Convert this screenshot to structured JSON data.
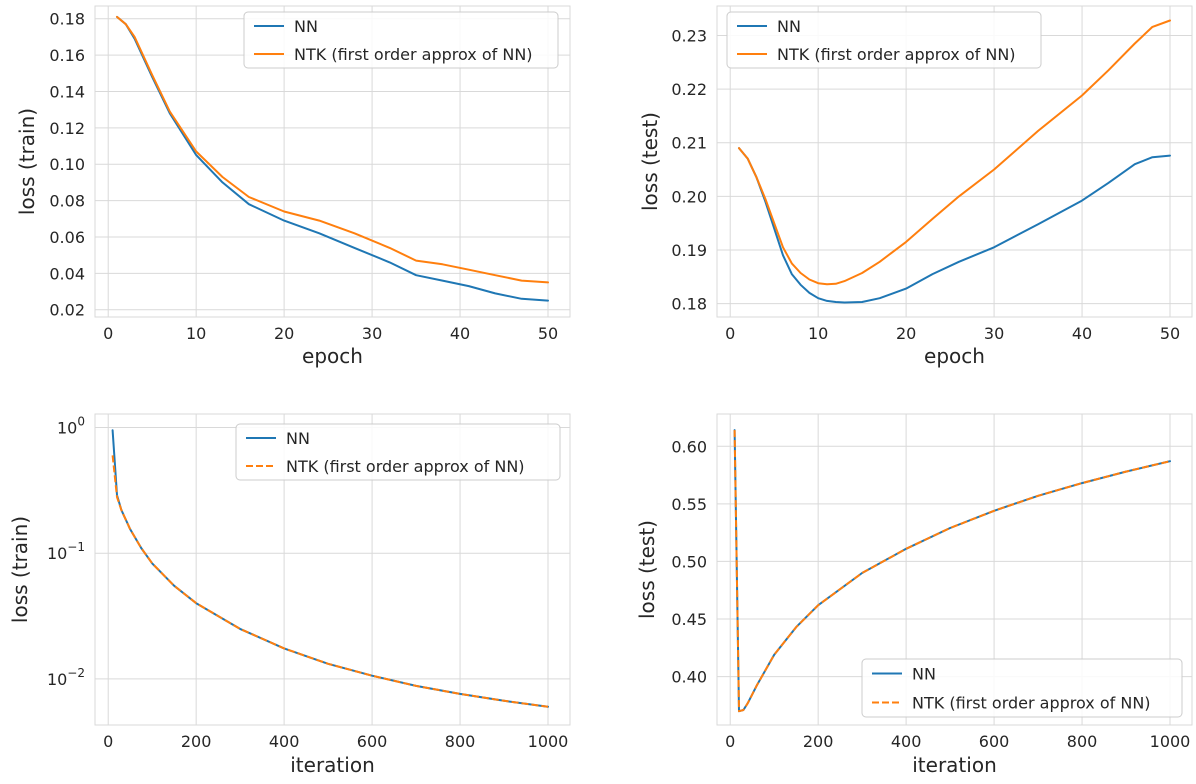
{
  "colors": {
    "nn": "#1f77b4",
    "ntk": "#ff7f0e",
    "grid": "#d9d9d9",
    "background": "#ffffff"
  },
  "chart_data": [
    {
      "type": "line",
      "xlabel": "epoch",
      "ylabel": "loss (train)",
      "xlim": [
        -1.5,
        52.5
      ],
      "ylim": [
        0.016,
        0.187
      ],
      "xticks": [
        {
          "v": 0,
          "label": "0"
        },
        {
          "v": 10,
          "label": "10"
        },
        {
          "v": 20,
          "label": "20"
        },
        {
          "v": 30,
          "label": "30"
        },
        {
          "v": 40,
          "label": "40"
        },
        {
          "v": 50,
          "label": "50"
        }
      ],
      "yticks": [
        {
          "v": 0.02,
          "label": "0.02"
        },
        {
          "v": 0.04,
          "label": "0.04"
        },
        {
          "v": 0.06,
          "label": "0.06"
        },
        {
          "v": 0.08,
          "label": "0.08"
        },
        {
          "v": 0.1,
          "label": "0.10"
        },
        {
          "v": 0.12,
          "label": "0.12"
        },
        {
          "v": 0.14,
          "label": "0.14"
        },
        {
          "v": 0.16,
          "label": "0.16"
        },
        {
          "v": 0.18,
          "label": "0.18"
        }
      ],
      "grid": true,
      "legend": "top-right",
      "series": [
        {
          "name": "NN",
          "color": "#1f77b4",
          "dash": false,
          "x": [
            1,
            2,
            3,
            5,
            7,
            10,
            13,
            16,
            20,
            24,
            28,
            32,
            35,
            38,
            41,
            44,
            47,
            50
          ],
          "y": [
            0.181,
            0.177,
            0.169,
            0.148,
            0.128,
            0.105,
            0.09,
            0.078,
            0.069,
            0.062,
            0.054,
            0.046,
            0.039,
            0.036,
            0.033,
            0.029,
            0.026,
            0.025
          ]
        },
        {
          "name": "NTK (first order approx of NN)",
          "color": "#ff7f0e",
          "dash": false,
          "x": [
            1,
            2,
            3,
            5,
            7,
            10,
            13,
            16,
            20,
            24,
            28,
            32,
            35,
            38,
            41,
            44,
            47,
            50
          ],
          "y": [
            0.181,
            0.177,
            0.17,
            0.149,
            0.129,
            0.107,
            0.093,
            0.082,
            0.074,
            0.069,
            0.062,
            0.054,
            0.047,
            0.045,
            0.042,
            0.039,
            0.036,
            0.035
          ]
        }
      ]
    },
    {
      "type": "line",
      "xlabel": "epoch",
      "ylabel": "loss (test)",
      "xlim": [
        -1.5,
        52.5
      ],
      "ylim": [
        0.1775,
        0.2355
      ],
      "xticks": [
        {
          "v": 0,
          "label": "0"
        },
        {
          "v": 10,
          "label": "10"
        },
        {
          "v": 20,
          "label": "20"
        },
        {
          "v": 30,
          "label": "30"
        },
        {
          "v": 40,
          "label": "40"
        },
        {
          "v": 50,
          "label": "50"
        }
      ],
      "yticks": [
        {
          "v": 0.18,
          "label": "0.18"
        },
        {
          "v": 0.19,
          "label": "0.19"
        },
        {
          "v": 0.2,
          "label": "0.20"
        },
        {
          "v": 0.21,
          "label": "0.21"
        },
        {
          "v": 0.22,
          "label": "0.22"
        },
        {
          "v": 0.23,
          "label": "0.23"
        }
      ],
      "grid": true,
      "legend": "top-left",
      "series": [
        {
          "name": "NN",
          "color": "#1f77b4",
          "dash": false,
          "x": [
            1,
            2,
            3,
            4,
            5,
            6,
            7,
            8,
            9,
            10,
            11,
            12,
            13,
            15,
            17,
            20,
            23,
            26,
            30,
            35,
            40,
            43,
            46,
            48,
            50
          ],
          "y": [
            0.209,
            0.207,
            0.2035,
            0.199,
            0.194,
            0.189,
            0.1855,
            0.1835,
            0.182,
            0.181,
            0.1805,
            0.1803,
            0.1802,
            0.1803,
            0.181,
            0.1828,
            0.1855,
            0.1878,
            0.1905,
            0.1948,
            0.1992,
            0.2025,
            0.206,
            0.2073,
            0.2076
          ]
        },
        {
          "name": "NTK (first order approx of NN)",
          "color": "#ff7f0e",
          "dash": false,
          "x": [
            1,
            2,
            3,
            4,
            5,
            6,
            7,
            8,
            9,
            10,
            11,
            12,
            13,
            15,
            17,
            20,
            23,
            26,
            30,
            35,
            40,
            43,
            46,
            48,
            50
          ],
          "y": [
            0.209,
            0.207,
            0.2035,
            0.1995,
            0.195,
            0.1905,
            0.1875,
            0.1857,
            0.1845,
            0.1838,
            0.1836,
            0.1837,
            0.1842,
            0.1857,
            0.1878,
            0.1915,
            0.1958,
            0.2,
            0.205,
            0.2122,
            0.2188,
            0.2235,
            0.2285,
            0.2316,
            0.2328
          ]
        }
      ]
    },
    {
      "type": "line",
      "xlabel": "iteration",
      "ylabel": "loss (train)",
      "ylog": true,
      "xlim": [
        -30,
        1050
      ],
      "ylim": [
        0.0043,
        1.28
      ],
      "xticks": [
        {
          "v": 0,
          "label": "0"
        },
        {
          "v": 200,
          "label": "200"
        },
        {
          "v": 400,
          "label": "400"
        },
        {
          "v": 600,
          "label": "600"
        },
        {
          "v": 800,
          "label": "800"
        },
        {
          "v": 1000,
          "label": "1000"
        }
      ],
      "yticks": [
        {
          "v": 1,
          "label": "10",
          "exp": "0"
        },
        {
          "v": 0.1,
          "label": "10",
          "exp": "−1"
        },
        {
          "v": 0.01,
          "label": "10",
          "exp": "−2"
        }
      ],
      "grid": true,
      "legend": "top-right",
      "series": [
        {
          "name": "NN",
          "color": "#1f77b4",
          "dash": false,
          "x": [
            10,
            20,
            30,
            50,
            75,
            100,
            150,
            200,
            300,
            400,
            500,
            600,
            700,
            800,
            900,
            1000
          ],
          "y": [
            0.95,
            0.29,
            0.22,
            0.155,
            0.11,
            0.083,
            0.055,
            0.04,
            0.025,
            0.0175,
            0.0132,
            0.0106,
            0.0088,
            0.0076,
            0.0067,
            0.006
          ]
        },
        {
          "name": "NTK (first order approx of NN)",
          "color": "#ff7f0e",
          "dash": true,
          "x": [
            10,
            20,
            30,
            50,
            75,
            100,
            150,
            200,
            300,
            400,
            500,
            600,
            700,
            800,
            900,
            1000
          ],
          "y": [
            0.6,
            0.28,
            0.22,
            0.155,
            0.11,
            0.083,
            0.055,
            0.04,
            0.025,
            0.0175,
            0.0132,
            0.0106,
            0.0088,
            0.0076,
            0.0067,
            0.006
          ]
        }
      ]
    },
    {
      "type": "line",
      "xlabel": "iteration",
      "ylabel": "loss (test)",
      "xlim": [
        -30,
        1050
      ],
      "ylim": [
        0.358,
        0.628
      ],
      "xticks": [
        {
          "v": 0,
          "label": "0"
        },
        {
          "v": 200,
          "label": "200"
        },
        {
          "v": 400,
          "label": "400"
        },
        {
          "v": 600,
          "label": "600"
        },
        {
          "v": 800,
          "label": "800"
        },
        {
          "v": 1000,
          "label": "1000"
        }
      ],
      "yticks": [
        {
          "v": 0.4,
          "label": "0.40"
        },
        {
          "v": 0.45,
          "label": "0.45"
        },
        {
          "v": 0.5,
          "label": "0.50"
        },
        {
          "v": 0.55,
          "label": "0.55"
        },
        {
          "v": 0.6,
          "label": "0.60"
        }
      ],
      "grid": true,
      "legend": "bottom-right",
      "series": [
        {
          "name": "NN",
          "color": "#1f77b4",
          "dash": false,
          "x": [
            10,
            20,
            30,
            40,
            60,
            100,
            150,
            200,
            300,
            400,
            500,
            600,
            700,
            800,
            900,
            1000
          ],
          "y": [
            0.614,
            0.37,
            0.371,
            0.377,
            0.392,
            0.419,
            0.443,
            0.462,
            0.49,
            0.511,
            0.529,
            0.544,
            0.557,
            0.568,
            0.578,
            0.587
          ]
        },
        {
          "name": "NTK (first order approx of NN)",
          "color": "#ff7f0e",
          "dash": true,
          "x": [
            10,
            20,
            30,
            40,
            60,
            100,
            150,
            200,
            300,
            400,
            500,
            600,
            700,
            800,
            900,
            1000
          ],
          "y": [
            0.614,
            0.37,
            0.371,
            0.377,
            0.392,
            0.419,
            0.443,
            0.462,
            0.49,
            0.511,
            0.529,
            0.544,
            0.557,
            0.568,
            0.578,
            0.587
          ]
        }
      ]
    }
  ]
}
